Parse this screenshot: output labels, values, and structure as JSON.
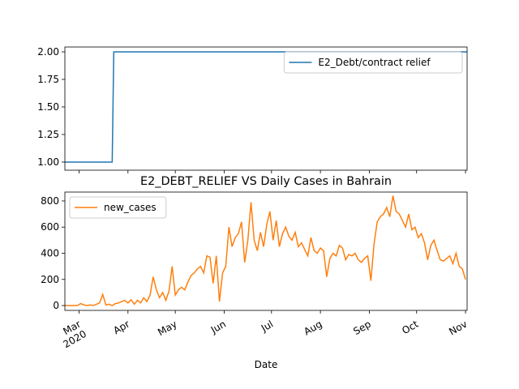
{
  "chart_data": [
    {
      "type": "line",
      "xlim": [
        "2020-02-21",
        "2020-11-02"
      ],
      "ylim": [
        0.926,
        2.044
      ],
      "yticks": [
        {
          "value": 1,
          "label": "1.00"
        },
        {
          "value": 1.25,
          "label": "1.25"
        },
        {
          "value": 1.5,
          "label": "1.50"
        },
        {
          "value": 1.75,
          "label": "1.75"
        },
        {
          "value": 2,
          "label": "2.00"
        }
      ],
      "legend": "upper right",
      "series": [
        {
          "name": "E2_Debt/contract relief",
          "color": "#1f77b4",
          "x": [
            "2020-02-21",
            "2020-03-22",
            "2020-03-23",
            "2020-11-02"
          ],
          "values": [
            1,
            1,
            2,
            2
          ]
        }
      ]
    },
    {
      "type": "line",
      "title": "E2_DEBT_RELIEF VS Daily Cases in Bahrain",
      "xlabel": "Date",
      "xlim": [
        "2020-02-21",
        "2020-11-02"
      ],
      "ylim": [
        -37,
        868
      ],
      "yticks": [
        0,
        200,
        400,
        600,
        800
      ],
      "xticks": [
        {
          "value": "2020-03-01",
          "label": "Mar\n2020"
        },
        {
          "value": "2020-04-01",
          "label": "Apr"
        },
        {
          "value": "2020-05-01",
          "label": "May"
        },
        {
          "value": "2020-06-01",
          "label": "Jun"
        },
        {
          "value": "2020-07-01",
          "label": "Jul"
        },
        {
          "value": "2020-08-01",
          "label": "Aug"
        },
        {
          "value": "2020-09-01",
          "label": "Sep"
        },
        {
          "value": "2020-10-01",
          "label": "Oct"
        },
        {
          "value": "2020-11-01",
          "label": "Nov"
        }
      ],
      "legend": "upper left",
      "series": [
        {
          "name": "new_cases",
          "color": "#ff7f0e",
          "x": [
            "2020-02-21",
            "2020-02-23",
            "2020-02-25",
            "2020-02-27",
            "2020-02-29",
            "2020-03-02",
            "2020-03-04",
            "2020-03-06",
            "2020-03-08",
            "2020-03-10",
            "2020-03-12",
            "2020-03-14",
            "2020-03-16",
            "2020-03-18",
            "2020-03-20",
            "2020-03-22",
            "2020-03-24",
            "2020-03-26",
            "2020-03-28",
            "2020-03-30",
            "2020-04-01",
            "2020-04-03",
            "2020-04-05",
            "2020-04-07",
            "2020-04-09",
            "2020-04-11",
            "2020-04-13",
            "2020-04-15",
            "2020-04-17",
            "2020-04-19",
            "2020-04-21",
            "2020-04-23",
            "2020-04-25",
            "2020-04-27",
            "2020-04-29",
            "2020-05-01",
            "2020-05-03",
            "2020-05-05",
            "2020-05-07",
            "2020-05-09",
            "2020-05-11",
            "2020-05-13",
            "2020-05-15",
            "2020-05-17",
            "2020-05-19",
            "2020-05-21",
            "2020-05-23",
            "2020-05-25",
            "2020-05-27",
            "2020-05-29",
            "2020-05-31",
            "2020-06-02",
            "2020-06-04",
            "2020-06-06",
            "2020-06-08",
            "2020-06-10",
            "2020-06-12",
            "2020-06-14",
            "2020-06-16",
            "2020-06-18",
            "2020-06-20",
            "2020-06-22",
            "2020-06-24",
            "2020-06-26",
            "2020-06-28",
            "2020-06-30",
            "2020-07-02",
            "2020-07-04",
            "2020-07-06",
            "2020-07-08",
            "2020-07-10",
            "2020-07-12",
            "2020-07-14",
            "2020-07-16",
            "2020-07-18",
            "2020-07-20",
            "2020-07-22",
            "2020-07-24",
            "2020-07-26",
            "2020-07-28",
            "2020-07-30",
            "2020-08-01",
            "2020-08-03",
            "2020-08-05",
            "2020-08-07",
            "2020-08-09",
            "2020-08-11",
            "2020-08-13",
            "2020-08-15",
            "2020-08-17",
            "2020-08-19",
            "2020-08-21",
            "2020-08-23",
            "2020-08-25",
            "2020-08-27",
            "2020-08-29",
            "2020-08-31",
            "2020-09-02",
            "2020-09-04",
            "2020-09-06",
            "2020-09-08",
            "2020-09-10",
            "2020-09-12",
            "2020-09-14",
            "2020-09-16",
            "2020-09-18",
            "2020-09-20",
            "2020-09-22",
            "2020-09-24",
            "2020-09-26",
            "2020-09-28",
            "2020-09-30",
            "2020-10-02",
            "2020-10-04",
            "2020-10-06",
            "2020-10-08",
            "2020-10-10",
            "2020-10-12",
            "2020-10-14",
            "2020-10-16",
            "2020-10-18",
            "2020-10-20",
            "2020-10-22",
            "2020-10-24",
            "2020-10-26",
            "2020-10-28",
            "2020-10-30",
            "2020-11-01"
          ],
          "values": [
            0,
            0,
            0,
            0,
            0,
            15,
            5,
            0,
            5,
            0,
            10,
            20,
            85,
            5,
            10,
            0,
            15,
            20,
            30,
            40,
            20,
            45,
            10,
            40,
            20,
            60,
            30,
            80,
            220,
            120,
            60,
            100,
            40,
            110,
            300,
            80,
            120,
            140,
            120,
            180,
            230,
            250,
            280,
            300,
            250,
            380,
            370,
            170,
            380,
            30,
            250,
            300,
            600,
            450,
            520,
            550,
            640,
            330,
            500,
            790,
            500,
            420,
            560,
            450,
            620,
            720,
            500,
            650,
            450,
            550,
            600,
            530,
            500,
            560,
            450,
            480,
            430,
            380,
            520,
            420,
            400,
            440,
            420,
            220,
            360,
            400,
            380,
            460,
            440,
            350,
            390,
            380,
            400,
            350,
            330,
            360,
            380,
            190,
            470,
            640,
            680,
            700,
            750,
            680,
            840,
            720,
            700,
            650,
            600,
            700,
            580,
            600,
            520,
            550,
            480,
            350,
            460,
            500,
            420,
            350,
            340,
            360,
            380,
            320,
            400,
            300,
            280,
            200
          ]
        }
      ]
    }
  ]
}
